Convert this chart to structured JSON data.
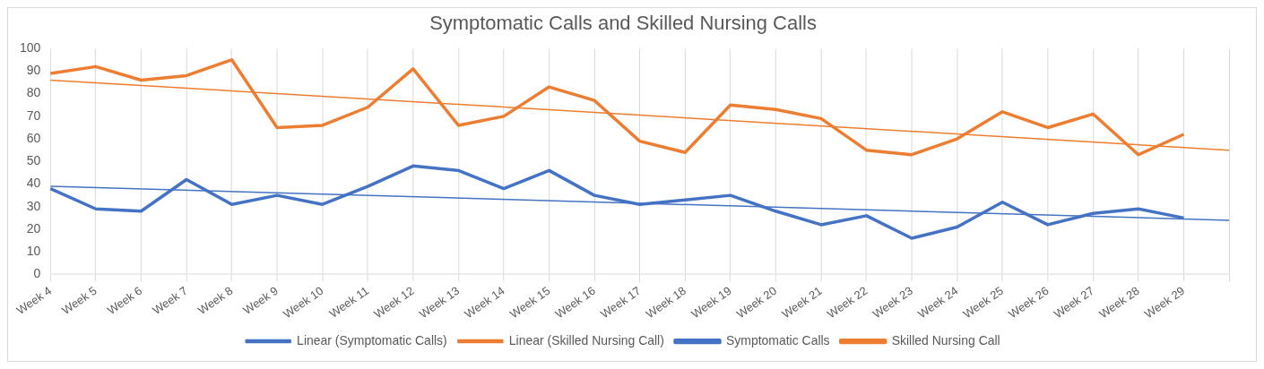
{
  "chart_data": {
    "type": "line",
    "title": "Symptomatic Calls and Skilled Nursing Calls",
    "categories": [
      "Week 4",
      "Week 5",
      "Week 6",
      "Week 7",
      "Week 8",
      "Week 9",
      "Week 10",
      "Week 11",
      "Week 12",
      "Week 13",
      "Week 14",
      "Week 15",
      "Week 16",
      "Week 17",
      "Week 18",
      "Week 19",
      "Week 20",
      "Week 21",
      "Week 22",
      "Week 23",
      "Week 24",
      "Week 25",
      "Week 26",
      "Week 27",
      "Week 28",
      "Week 29",
      null
    ],
    "series": [
      {
        "name": "Symptomatic Calls",
        "color": "#4472c4",
        "values": [
          38,
          29,
          28,
          42,
          31,
          35,
          31,
          39,
          48,
          46,
          38,
          46,
          35,
          31,
          33,
          35,
          28,
          22,
          26,
          16,
          21,
          32,
          22,
          27,
          29,
          25,
          null
        ]
      },
      {
        "name": "Skilled Nursing Call",
        "color": "#ed7d31",
        "values": [
          89,
          92,
          86,
          88,
          95,
          65,
          66,
          74,
          91,
          66,
          70,
          83,
          77,
          59,
          54,
          75,
          73,
          69,
          55,
          53,
          60,
          72,
          65,
          71,
          53,
          62,
          null
        ]
      },
      {
        "name": "Linear (Symptomatic Calls)",
        "type": "line",
        "color": "#4472c4",
        "values": [
          39,
          null,
          null,
          null,
          null,
          null,
          null,
          null,
          null,
          null,
          null,
          null,
          null,
          null,
          null,
          null,
          null,
          null,
          null,
          null,
          null,
          null,
          null,
          null,
          null,
          null,
          24
        ]
      },
      {
        "name": "Linear (Skilled Nursing Call)",
        "type": "line",
        "color": "#ed7d31",
        "values": [
          86,
          null,
          null,
          null,
          null,
          null,
          null,
          null,
          null,
          null,
          null,
          null,
          null,
          null,
          null,
          null,
          null,
          null,
          null,
          null,
          null,
          null,
          null,
          null,
          null,
          null,
          55
        ]
      }
    ],
    "ylim": [
      0,
      100
    ],
    "yticks": [
      0,
      10,
      20,
      30,
      40,
      50,
      60,
      70,
      80,
      90,
      100
    ],
    "grid": "x",
    "legend": "bottom",
    "marker": "none"
  }
}
